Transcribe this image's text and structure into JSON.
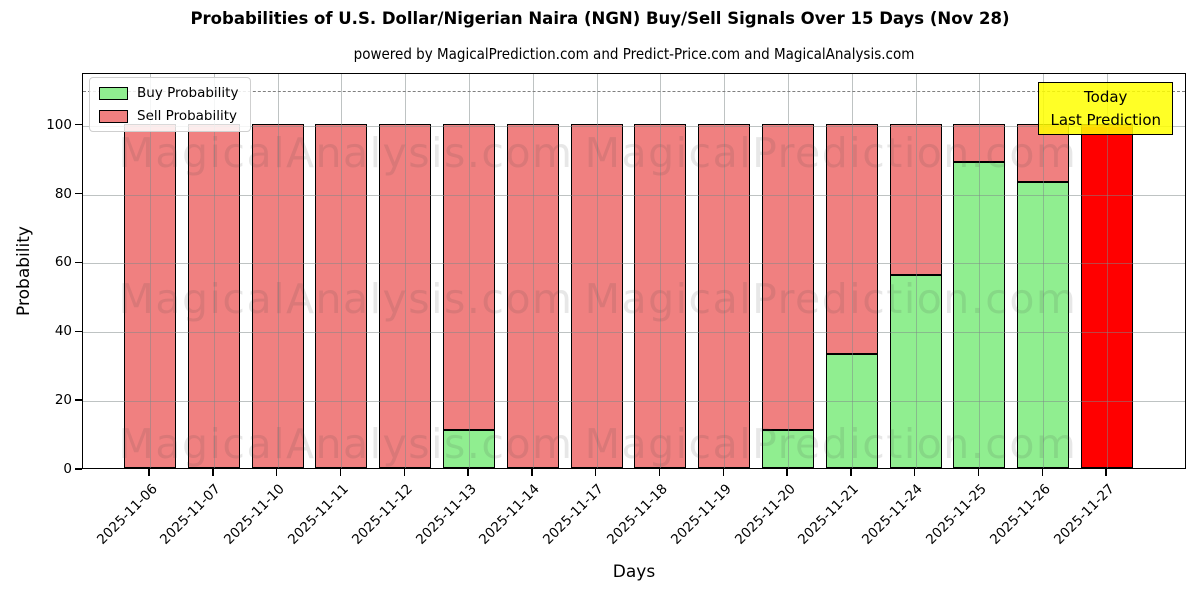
{
  "page": {
    "title": "Probabilities of U.S. Dollar/Nigerian Naira (NGN) Buy/Sell Signals Over 15 Days (Nov 28)",
    "subtitle": "powered by MagicalPrediction.com and Predict-Price.com and MagicalAnalysis.com"
  },
  "legend": {
    "items": [
      {
        "label": "Buy Probability",
        "color": "#90ee90"
      },
      {
        "label": "Sell Probability",
        "color": "#f08080"
      }
    ]
  },
  "annotation": {
    "line1": "Today",
    "line2": "Last Prediction",
    "bg_color": "#ffff00"
  },
  "watermarks": [
    "MagicalAnalysis.com",
    "MagicalPrediction.com"
  ],
  "chart_data": {
    "type": "bar",
    "stacked": true,
    "title": "Probabilities of U.S. Dollar/Nigerian Naira (NGN) Buy/Sell Signals Over 15 Days (Nov 28)",
    "xlabel": "Days",
    "ylabel": "Probability",
    "categories": [
      "2025-11-06",
      "2025-11-07",
      "2025-11-10",
      "2025-11-11",
      "2025-11-12",
      "2025-11-13",
      "2025-11-14",
      "2025-11-17",
      "2025-11-18",
      "2025-11-19",
      "2025-11-20",
      "2025-11-21",
      "2025-11-24",
      "2025-11-25",
      "2025-11-26",
      "2025-11-27"
    ],
    "series": [
      {
        "name": "Buy Probability",
        "color": "#90ee90",
        "values": [
          0,
          0,
          0,
          0,
          0,
          11,
          0,
          0,
          0,
          0,
          11,
          33,
          56,
          89,
          83,
          0
        ]
      },
      {
        "name": "Sell Probability",
        "color": "#f08080",
        "values": [
          100,
          100,
          100,
          100,
          100,
          89,
          100,
          100,
          100,
          100,
          89,
          67,
          44,
          11,
          17,
          0
        ]
      }
    ],
    "today_bar": {
      "category": "2025-11-27",
      "value": 100,
      "color": "#ff0000"
    },
    "yticks": [
      0,
      20,
      40,
      60,
      80,
      100
    ],
    "ylim": [
      0,
      115
    ],
    "dashed_line_y": 110,
    "grid": true,
    "legend_position": "upper left"
  }
}
